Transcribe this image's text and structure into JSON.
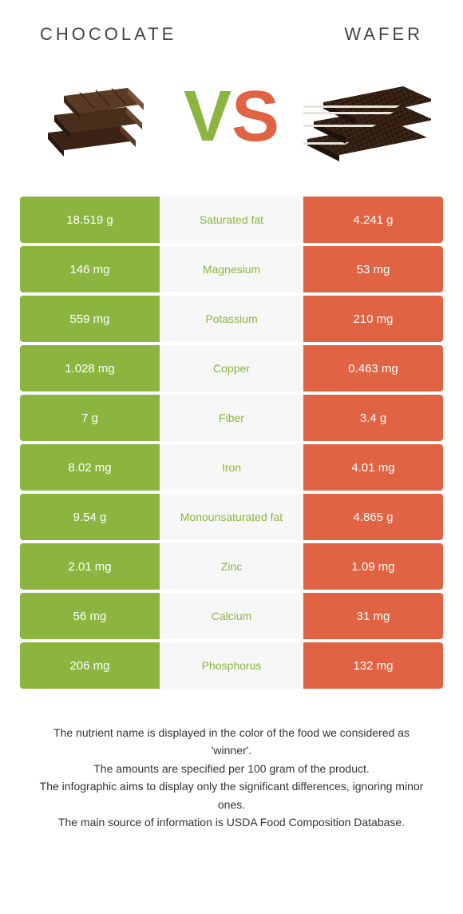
{
  "colors": {
    "green": "#8bb53f",
    "orange": "#e06344",
    "mid_bg": "#f7f7f7"
  },
  "header": {
    "left_title": "CHOCOLATE",
    "right_title": "WAFER"
  },
  "vs": {
    "v": "V",
    "s": "S"
  },
  "table": {
    "rows": [
      {
        "left": "18.519 g",
        "label": "Saturated fat",
        "right": "4.241 g",
        "winner": "left"
      },
      {
        "left": "146 mg",
        "label": "Magnesium",
        "right": "53 mg",
        "winner": "left"
      },
      {
        "left": "559 mg",
        "label": "Potassium",
        "right": "210 mg",
        "winner": "left"
      },
      {
        "left": "1.028 mg",
        "label": "Copper",
        "right": "0.463 mg",
        "winner": "left"
      },
      {
        "left": "7 g",
        "label": "Fiber",
        "right": "3.4 g",
        "winner": "left"
      },
      {
        "left": "8.02 mg",
        "label": "Iron",
        "right": "4.01 mg",
        "winner": "left"
      },
      {
        "left": "9.54 g",
        "label": "Monounsaturated fat",
        "right": "4.865 g",
        "winner": "left"
      },
      {
        "left": "2.01 mg",
        "label": "Zinc",
        "right": "1.09 mg",
        "winner": "left"
      },
      {
        "left": "56 mg",
        "label": "Calcium",
        "right": "31 mg",
        "winner": "left"
      },
      {
        "left": "206 mg",
        "label": "Phosphorus",
        "right": "132 mg",
        "winner": "left"
      }
    ]
  },
  "footer": {
    "line1": "The nutrient name is displayed in the color of the food we considered as 'winner'.",
    "line2": "The amounts are specified per 100 gram of the product.",
    "line3": "The infographic aims to display only the significant differences, ignoring minor ones.",
    "line4": "The main source of information is USDA Food Composition Database."
  }
}
